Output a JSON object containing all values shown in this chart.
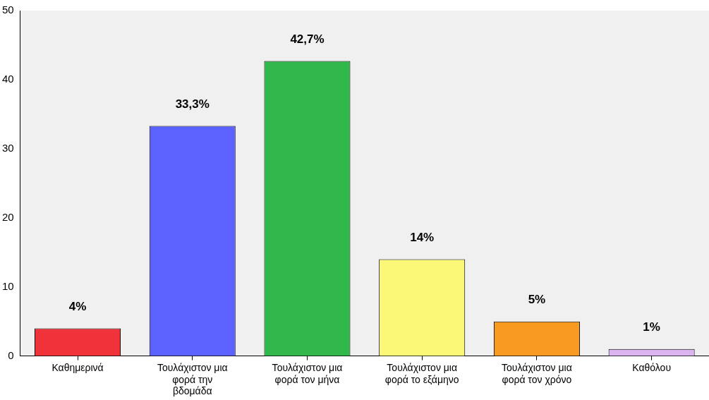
{
  "chart_data": {
    "type": "bar",
    "categories": [
      "Καθημερινά",
      "Τουλάχιστον μια φορά την βδομάδα",
      "Τουλάχιστον μια φορά τον μήνα",
      "Τουλάχιστον μια φορά το εξάμηνο",
      "Τουλάχιστον μια φορά τον χρόνο",
      "Καθόλου"
    ],
    "values": [
      4,
      33.3,
      42.7,
      14,
      5,
      1
    ],
    "colors": [
      "#f0333a",
      "#5b62ff",
      "#30b84a",
      "#fbf877",
      "#f99a20",
      "#dcb4f0"
    ],
    "value_labels": [
      "4%",
      "33,3%",
      "42,7%",
      "14%",
      "5%",
      "1%"
    ],
    "ylim": [
      0,
      50
    ],
    "yticks": [
      0,
      10,
      20,
      30,
      40,
      50
    ],
    "grid": false,
    "legend": false
  }
}
